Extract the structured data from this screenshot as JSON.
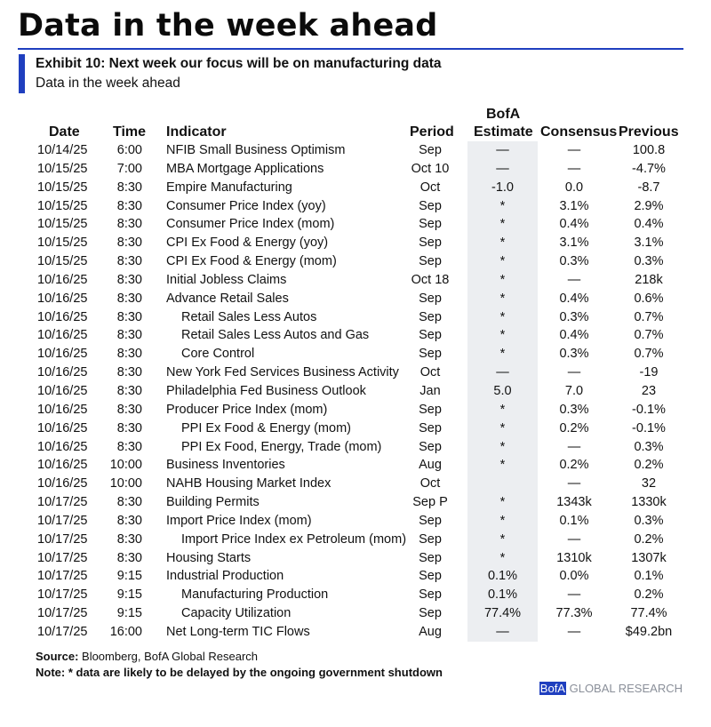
{
  "title": "Data in the week ahead",
  "exhibit": {
    "title": "Exhibit 10: Next week our focus will be on manufacturing data",
    "subtitle": "Data in the week ahead"
  },
  "headers": {
    "date": "Date",
    "time": "Time",
    "indicator": "Indicator",
    "period": "Period",
    "bofa_line1": "BofA",
    "bofa_line2": "Estimate",
    "consensus": "Consensus",
    "previous": "Previous"
  },
  "rows": [
    {
      "date": "10/14/25",
      "time": "6:00",
      "indicator": "NFIB Small Business Optimism",
      "indent": false,
      "period": "Sep",
      "estimate": "—",
      "consensus": "—",
      "previous": "100.8"
    },
    {
      "date": "10/15/25",
      "time": "7:00",
      "indicator": "MBA Mortgage Applications",
      "indent": false,
      "period": "Oct 10",
      "estimate": "—",
      "consensus": "—",
      "previous": "-4.7%"
    },
    {
      "date": "10/15/25",
      "time": "8:30",
      "indicator": "Empire Manufacturing",
      "indent": false,
      "period": "Oct",
      "estimate": "-1.0",
      "consensus": "0.0",
      "previous": "-8.7"
    },
    {
      "date": "10/15/25",
      "time": "8:30",
      "indicator": "Consumer Price Index (yoy)",
      "indent": false,
      "period": "Sep",
      "estimate": "*",
      "consensus": "3.1%",
      "previous": "2.9%"
    },
    {
      "date": "10/15/25",
      "time": "8:30",
      "indicator": "Consumer Price Index (mom)",
      "indent": false,
      "period": "Sep",
      "estimate": "*",
      "consensus": "0.4%",
      "previous": "0.4%"
    },
    {
      "date": "10/15/25",
      "time": "8:30",
      "indicator": "CPI Ex Food & Energy (yoy)",
      "indent": false,
      "period": "Sep",
      "estimate": "*",
      "consensus": "3.1%",
      "previous": "3.1%"
    },
    {
      "date": "10/15/25",
      "time": "8:30",
      "indicator": "CPI Ex Food & Energy (mom)",
      "indent": false,
      "period": "Sep",
      "estimate": "*",
      "consensus": "0.3%",
      "previous": "0.3%"
    },
    {
      "date": "10/16/25",
      "time": "8:30",
      "indicator": "Initial Jobless Claims",
      "indent": false,
      "period": "Oct 18",
      "estimate": "*",
      "consensus": "—",
      "previous": "218k"
    },
    {
      "date": "10/16/25",
      "time": "8:30",
      "indicator": "Advance Retail Sales",
      "indent": false,
      "period": "Sep",
      "estimate": "*",
      "consensus": "0.4%",
      "previous": "0.6%"
    },
    {
      "date": "10/16/25",
      "time": "8:30",
      "indicator": "Retail Sales Less Autos",
      "indent": true,
      "period": "Sep",
      "estimate": "*",
      "consensus": "0.3%",
      "previous": "0.7%"
    },
    {
      "date": "10/16/25",
      "time": "8:30",
      "indicator": "Retail Sales Less Autos and Gas",
      "indent": true,
      "period": "Sep",
      "estimate": "*",
      "consensus": "0.4%",
      "previous": "0.7%"
    },
    {
      "date": "10/16/25",
      "time": "8:30",
      "indicator": "Core Control",
      "indent": true,
      "period": "Sep",
      "estimate": "*",
      "consensus": "0.3%",
      "previous": "0.7%"
    },
    {
      "date": "10/16/25",
      "time": "8:30",
      "indicator": "New York Fed Services Business Activity",
      "indent": false,
      "period": "Oct",
      "estimate": "—",
      "consensus": "—",
      "previous": "-19"
    },
    {
      "date": "10/16/25",
      "time": "8:30",
      "indicator": "Philadelphia Fed Business Outlook",
      "indent": false,
      "period": "Jan",
      "estimate": "5.0",
      "consensus": "7.0",
      "previous": "23"
    },
    {
      "date": "10/16/25",
      "time": "8:30",
      "indicator": "Producer Price Index (mom)",
      "indent": false,
      "period": "Sep",
      "estimate": "*",
      "consensus": "0.3%",
      "previous": "-0.1%"
    },
    {
      "date": "10/16/25",
      "time": "8:30",
      "indicator": "PPI Ex Food & Energy (mom)",
      "indent": true,
      "period": "Sep",
      "estimate": "*",
      "consensus": "0.2%",
      "previous": "-0.1%"
    },
    {
      "date": "10/16/25",
      "time": "8:30",
      "indicator": "PPI Ex Food, Energy, Trade (mom)",
      "indent": true,
      "period": "Sep",
      "estimate": "*",
      "consensus": "—",
      "previous": "0.3%"
    },
    {
      "date": "10/16/25",
      "time": "10:00",
      "indicator": "Business Inventories",
      "indent": false,
      "period": "Aug",
      "estimate": "*",
      "consensus": "0.2%",
      "previous": "0.2%"
    },
    {
      "date": "10/16/25",
      "time": "10:00",
      "indicator": "NAHB Housing Market Index",
      "indent": false,
      "period": "Oct",
      "estimate": "",
      "consensus": "—",
      "previous": "32"
    },
    {
      "date": "10/17/25",
      "time": "8:30",
      "indicator": "Building Permits",
      "indent": false,
      "period": "Sep P",
      "estimate": "*",
      "consensus": "1343k",
      "previous": "1330k"
    },
    {
      "date": "10/17/25",
      "time": "8:30",
      "indicator": "Import Price Index (mom)",
      "indent": false,
      "period": "Sep",
      "estimate": "*",
      "consensus": "0.1%",
      "previous": "0.3%"
    },
    {
      "date": "10/17/25",
      "time": "8:30",
      "indicator": "Import Price Index ex Petroleum (mom)",
      "indent": true,
      "period": "Sep",
      "estimate": "*",
      "consensus": "—",
      "previous": "0.2%"
    },
    {
      "date": "10/17/25",
      "time": "8:30",
      "indicator": "Housing Starts",
      "indent": false,
      "period": "Sep",
      "estimate": "*",
      "consensus": "1310k",
      "previous": "1307k"
    },
    {
      "date": "10/17/25",
      "time": "9:15",
      "indicator": "Industrial Production",
      "indent": false,
      "period": "Sep",
      "estimate": "0.1%",
      "consensus": "0.0%",
      "previous": "0.1%"
    },
    {
      "date": "10/17/25",
      "time": "9:15",
      "indicator": "Manufacturing Production",
      "indent": true,
      "period": "Sep",
      "estimate": "0.1%",
      "consensus": "—",
      "previous": "0.2%"
    },
    {
      "date": "10/17/25",
      "time": "9:15",
      "indicator": "Capacity Utilization",
      "indent": true,
      "period": "Sep",
      "estimate": "77.4%",
      "consensus": "77.3%",
      "previous": "77.4%"
    },
    {
      "date": "10/17/25",
      "time": "16:00",
      "indicator": "Net Long-term TIC Flows",
      "indent": false,
      "period": "Aug",
      "estimate": "—",
      "consensus": "—",
      "previous": "$49.2bn"
    }
  ],
  "source": {
    "label": "Source:",
    "text": " Bloomberg, BofA Global Research"
  },
  "note": "Note: * data are likely to be delayed by the ongoing government shutdown",
  "brand": {
    "bofa": "BofA",
    "rest": " GLOBAL RESEARCH"
  },
  "colors": {
    "accent": "#1f3fbf",
    "estimate_shade": "#eceef1"
  }
}
